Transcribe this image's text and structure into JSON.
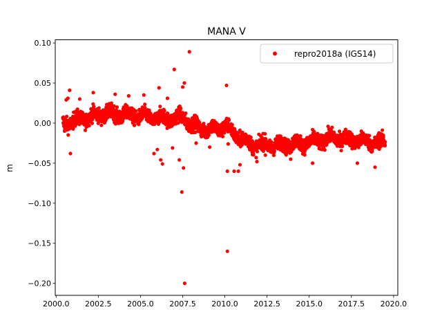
{
  "chart_data": {
    "type": "scatter",
    "title": "MANA V",
    "xlabel": "",
    "ylabel": "m",
    "xlim": [
      1999.95,
      2020.25
    ],
    "ylim": [
      -0.215,
      0.104
    ],
    "xticks": [
      2000.0,
      2002.5,
      2005.0,
      2007.5,
      2010.0,
      2012.5,
      2015.0,
      2017.5,
      2020.0
    ],
    "xtick_labels": [
      "2000.0",
      "2002.5",
      "2005.0",
      "2007.5",
      "2010.0",
      "2012.5",
      "2015.0",
      "2017.5",
      "2020.0"
    ],
    "yticks": [
      0.1,
      0.05,
      0.0,
      -0.05,
      -0.1,
      -0.15,
      -0.2
    ],
    "ytick_labels": [
      "0.10",
      "0.05",
      "0.00",
      "−0.05",
      "−0.10",
      "−0.15",
      "−0.20"
    ],
    "grid": false,
    "legend_position": "upper right",
    "series": [
      {
        "name": "repro2018a (IGS14)",
        "color": "#ff0000",
        "marker": "circle",
        "trend": {
          "x": [
            2000.4,
            2001.0,
            2002.0,
            2003.0,
            2004.0,
            2005.0,
            2006.0,
            2007.0,
            2007.6,
            2008.0,
            2009.0,
            2009.7,
            2010.0,
            2010.4,
            2011.0,
            2011.8,
            2012.5,
            2013.0,
            2014.0,
            2015.0,
            2016.0,
            2016.5,
            2017.0,
            2018.0,
            2019.0,
            2019.5
          ],
          "y": [
            0.0,
            0.002,
            0.008,
            0.012,
            0.01,
            0.009,
            0.006,
            0.006,
            0.008,
            -0.003,
            -0.008,
            -0.006,
            -0.004,
            -0.01,
            -0.02,
            -0.028,
            -0.027,
            -0.028,
            -0.026,
            -0.024,
            -0.02,
            -0.018,
            -0.02,
            -0.022,
            -0.024,
            -0.025
          ]
        },
        "spread": 0.009,
        "outliers": {
          "x": [
            2000.5,
            2000.6,
            2000.8,
            2000.85,
            2000.7,
            2001.4,
            2002.2,
            2003.5,
            2004.3,
            2005.2,
            2005.8,
            2006.0,
            2006.2,
            2006.3,
            2006.1,
            2006.6,
            2006.9,
            2007.0,
            2007.3,
            2007.5,
            2007.6,
            2007.45,
            2007.55,
            2007.62,
            2007.9,
            2008.3,
            2009.1,
            2010.1,
            2010.15,
            2010.15,
            2010.2,
            2010.55,
            2010.8,
            2010.9,
            2011.9,
            2012.4,
            2013.9,
            2015.2,
            2017.85,
            2018.9,
            2019.2
          ],
          "y": [
            -0.01,
            0.029,
            0.041,
            -0.038,
            0.031,
            0.03,
            0.038,
            0.036,
            0.034,
            0.035,
            -0.038,
            -0.033,
            -0.046,
            -0.051,
            0.044,
            0.031,
            -0.031,
            0.067,
            -0.046,
            0.045,
            0.05,
            -0.086,
            -0.056,
            -0.2,
            0.089,
            -0.025,
            -0.03,
            0.047,
            -0.06,
            -0.16,
            -0.026,
            -0.06,
            -0.06,
            -0.052,
            -0.048,
            -0.04,
            -0.045,
            -0.05,
            -0.05,
            -0.055,
            -0.03
          ]
        }
      }
    ]
  }
}
